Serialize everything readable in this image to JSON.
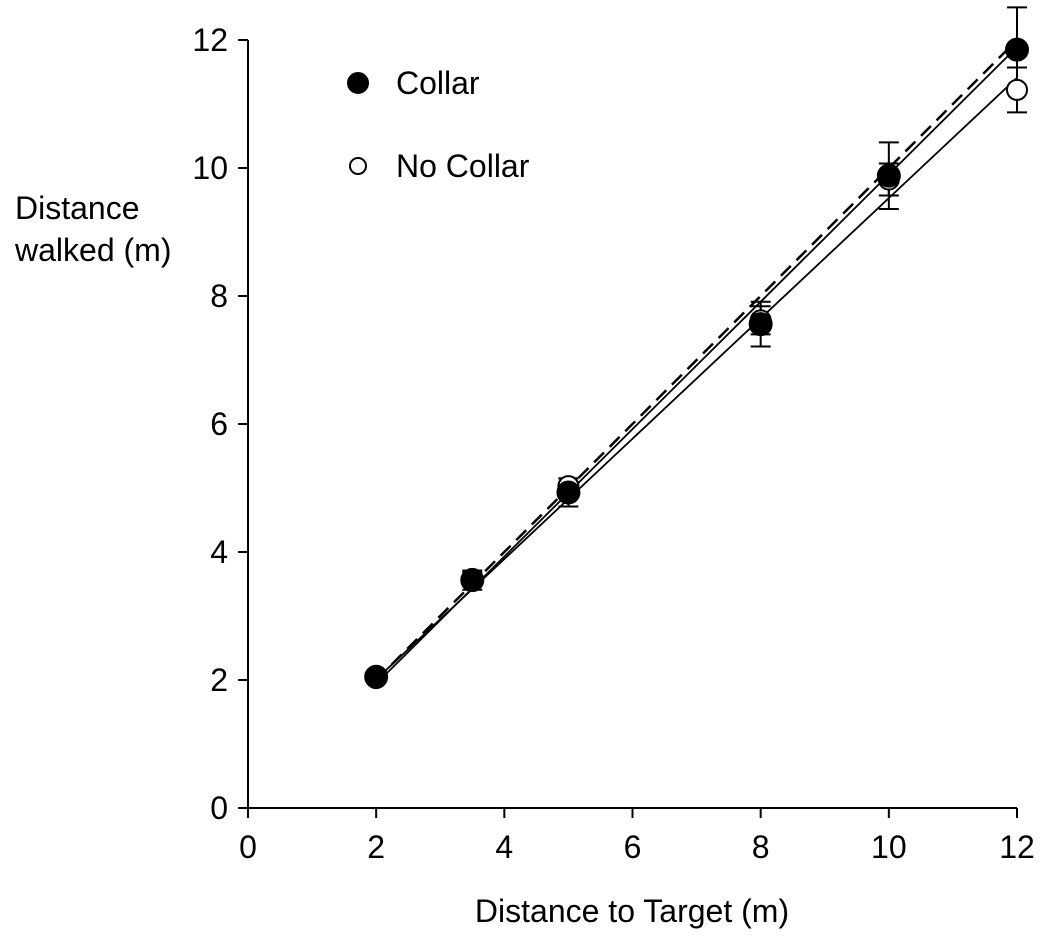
{
  "chart_data": {
    "type": "scatter",
    "xlabel": "Distance to Target (m)",
    "ylabel_lines": [
      "Distance",
      "walked (m)"
    ],
    "xlim": [
      0,
      12
    ],
    "ylim": [
      0,
      12
    ],
    "x_ticks": [
      "0",
      "2",
      "4",
      "6",
      "8",
      "10",
      "12"
    ],
    "y_ticks": [
      "0",
      "2",
      "4",
      "6",
      "8",
      "10",
      "12"
    ],
    "grid": false,
    "legend_position": "top-left",
    "series": [
      {
        "name": "Collar",
        "marker": "filled-circle",
        "x": [
          2,
          3.5,
          5,
          8,
          10,
          12
        ],
        "y": [
          2.05,
          3.56,
          4.93,
          7.56,
          9.88,
          11.85
        ],
        "error": [
          0.08,
          0.15,
          0.22,
          0.35,
          0.52,
          0.66
        ],
        "fit": [
          -0.05,
          0.995
        ]
      },
      {
        "name": "No Collar",
        "marker": "open-circle",
        "x": [
          2,
          3.5,
          5,
          8,
          10,
          12
        ],
        "y": [
          2.03,
          3.58,
          5.03,
          7.62,
          9.82,
          11.22
        ],
        "error": [
          0.05,
          0.1,
          0.12,
          0.22,
          0.25,
          0.35
        ],
        "fit": [
          0.13,
          0.94
        ]
      }
    ],
    "reference_line": {
      "style": "dashed",
      "x": [
        2,
        12
      ],
      "y": [
        2,
        12
      ]
    },
    "colors": {
      "ink": "#000000",
      "background": "#ffffff"
    }
  }
}
